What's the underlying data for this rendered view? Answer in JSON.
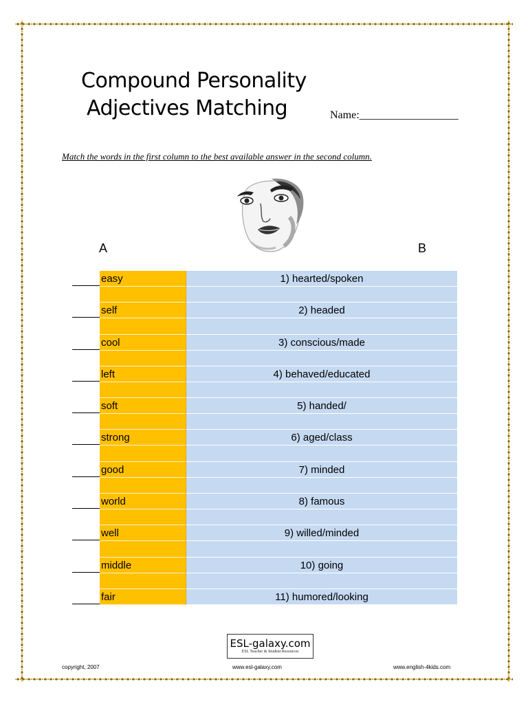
{
  "title": {
    "line1": "Compound Personality",
    "line2": "Adjectives Matching"
  },
  "name_label": "Name:__________________",
  "instruction": "Match the words in the first column to the best available answer in the second column.",
  "columns": {
    "a": "A",
    "b": "B"
  },
  "blank": "____",
  "rows": [
    {
      "word": "easy",
      "answer": "1) hearted/spoken"
    },
    {
      "word": "self",
      "answer": "2) headed"
    },
    {
      "word": "cool",
      "answer": "3) conscious/made"
    },
    {
      "word": "left",
      "answer": "4) behaved/educated"
    },
    {
      "word": "soft",
      "answer": "5) handed/"
    },
    {
      "word": "strong",
      "answer": "6) aged/class"
    },
    {
      "word": "good",
      "answer": "7) minded"
    },
    {
      "word": "world",
      "answer": "8) famous"
    },
    {
      "word": "well",
      "answer": "9) willed/minded"
    },
    {
      "word": "middle",
      "answer": "10) going"
    },
    {
      "word": "fair",
      "answer": "11) humored/looking"
    }
  ],
  "logo": {
    "main": "ESL-galaxy.com",
    "sub": "ESL Teacher & Student Resources"
  },
  "footer": {
    "copyright": "copyright, 2007",
    "site1": "www.esl-galaxy.com",
    "site2": "www.english-4kids.com"
  },
  "colors": {
    "word_column": "#ffc000",
    "answer_column": "#c5d9f1",
    "border": "#8a6a12"
  }
}
